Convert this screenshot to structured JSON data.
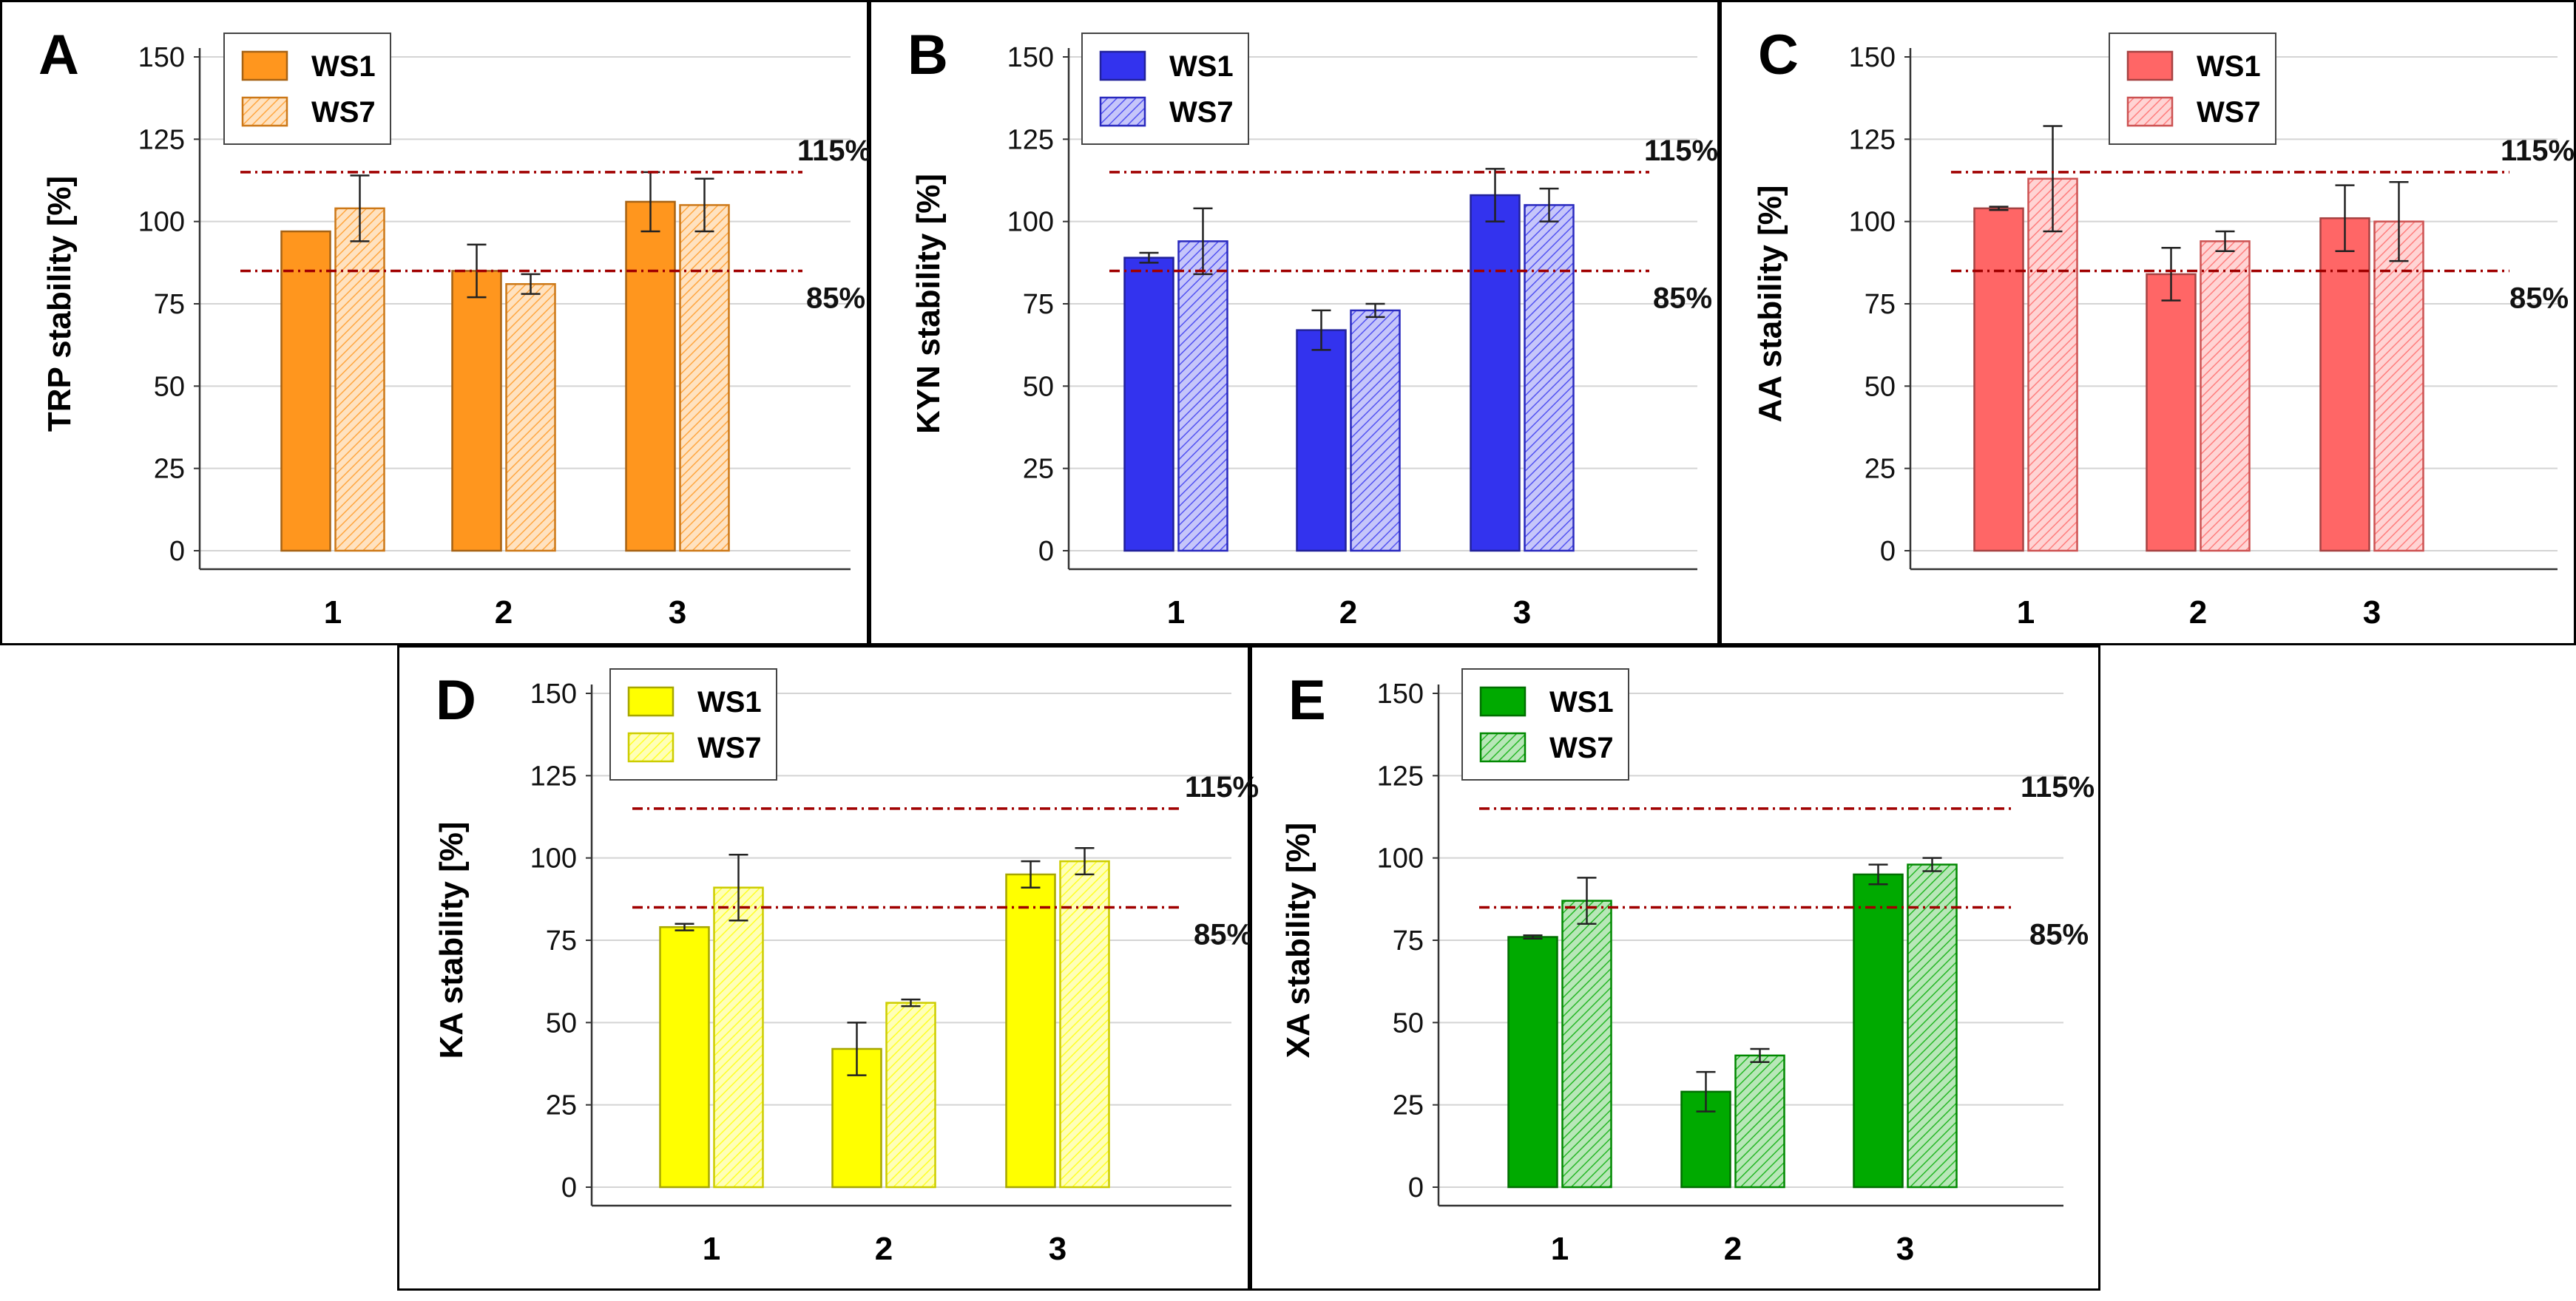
{
  "legend_labels": [
    "WS1",
    "WS7"
  ],
  "threshold_labels": {
    "upper": "115%",
    "lower": "85%"
  },
  "chart_data": [
    {
      "type": "bar",
      "panel_label": "A",
      "color": "#FF961E",
      "ylabel": "TRP stability [%]",
      "categories": [
        "1",
        "2",
        "3"
      ],
      "ylim": [
        0,
        150
      ],
      "yticks": [
        0,
        25,
        50,
        75,
        100,
        125,
        150
      ],
      "legend_position": "top-left",
      "thresholds": [
        115,
        85
      ],
      "series": [
        {
          "name": "WS1",
          "values": [
            97,
            85,
            106
          ],
          "errors": [
            0,
            8,
            9
          ]
        },
        {
          "name": "WS7",
          "values": [
            104,
            81,
            105
          ],
          "errors": [
            10,
            3,
            8
          ]
        }
      ]
    },
    {
      "type": "bar",
      "panel_label": "B",
      "color": "#3333EE",
      "ylabel": "KYN stability [%]",
      "categories": [
        "1",
        "2",
        "3"
      ],
      "ylim": [
        0,
        150
      ],
      "yticks": [
        0,
        25,
        50,
        75,
        100,
        125,
        150
      ],
      "legend_position": "top-left",
      "thresholds": [
        115,
        85
      ],
      "series": [
        {
          "name": "WS1",
          "values": [
            89,
            67,
            108
          ],
          "errors": [
            1.5,
            6,
            8
          ]
        },
        {
          "name": "WS7",
          "values": [
            94,
            73,
            105
          ],
          "errors": [
            10,
            2,
            5
          ]
        }
      ]
    },
    {
      "type": "bar",
      "panel_label": "C",
      "color": "#FF6666",
      "ylabel": "AA stability [%]",
      "categories": [
        "1",
        "2",
        "3"
      ],
      "ylim": [
        0,
        150
      ],
      "yticks": [
        0,
        25,
        50,
        75,
        100,
        125,
        150
      ],
      "legend_position": "top-center",
      "thresholds": [
        115,
        85
      ],
      "series": [
        {
          "name": "WS1",
          "values": [
            104,
            84,
            101
          ],
          "errors": [
            0.5,
            8,
            10
          ]
        },
        {
          "name": "WS7",
          "values": [
            113,
            94,
            100
          ],
          "errors": [
            16,
            3,
            12
          ]
        }
      ]
    },
    {
      "type": "bar",
      "panel_label": "D",
      "color": "#FFFF00",
      "ylabel": "KA stability [%]",
      "categories": [
        "1",
        "2",
        "3"
      ],
      "ylim": [
        0,
        150
      ],
      "yticks": [
        0,
        25,
        50,
        75,
        100,
        125,
        150
      ],
      "legend_position": "top-left",
      "thresholds": [
        115,
        85
      ],
      "series": [
        {
          "name": "WS1",
          "values": [
            79,
            42,
            95
          ],
          "errors": [
            1,
            8,
            4
          ]
        },
        {
          "name": "WS7",
          "values": [
            91,
            56,
            99
          ],
          "errors": [
            10,
            1,
            4
          ]
        }
      ]
    },
    {
      "type": "bar",
      "panel_label": "E",
      "color": "#00AA00",
      "ylabel": "XA stability [%]",
      "categories": [
        "1",
        "2",
        "3"
      ],
      "ylim": [
        0,
        150
      ],
      "yticks": [
        0,
        25,
        50,
        75,
        100,
        125,
        150
      ],
      "legend_position": "top-left",
      "thresholds": [
        115,
        85
      ],
      "series": [
        {
          "name": "WS1",
          "values": [
            76,
            29,
            95
          ],
          "errors": [
            0.5,
            6,
            3
          ]
        },
        {
          "name": "WS7",
          "values": [
            87,
            40,
            98
          ],
          "errors": [
            7,
            2,
            2
          ]
        }
      ]
    }
  ]
}
